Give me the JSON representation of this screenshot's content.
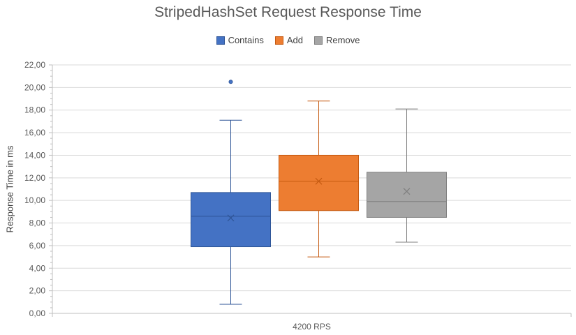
{
  "chart_data": {
    "type": "boxplot",
    "title": "StripedHashSet Request Response Time",
    "ylabel": "Response Time in ms",
    "xlabel": "",
    "categories": [
      "4200 RPS"
    ],
    "ylim": [
      0,
      22
    ],
    "ytick_step": 2,
    "ytick_labels": [
      "0,00",
      "2,00",
      "4,00",
      "6,00",
      "8,00",
      "10,00",
      "12,00",
      "14,00",
      "16,00",
      "18,00",
      "20,00",
      "22,00"
    ],
    "grid": true,
    "legend_position": "top",
    "series": [
      {
        "name": "Contains",
        "color": "#4472C4",
        "border": "#2F5597",
        "min": 0.8,
        "q1": 5.9,
        "median": 8.6,
        "mean": 8.45,
        "q3": 10.7,
        "max": 17.1,
        "outliers": [
          20.5
        ]
      },
      {
        "name": "Add",
        "color": "#ED7D31",
        "border": "#C55A11",
        "min": 5.0,
        "q1": 9.1,
        "median": 11.7,
        "mean": 11.7,
        "q3": 14.0,
        "max": 18.8,
        "outliers": []
      },
      {
        "name": "Remove",
        "color": "#A5A5A5",
        "border": "#7F7F7F",
        "min": 6.3,
        "q1": 8.5,
        "median": 9.9,
        "mean": 10.8,
        "q3": 12.5,
        "max": 18.1,
        "outliers": []
      }
    ]
  }
}
